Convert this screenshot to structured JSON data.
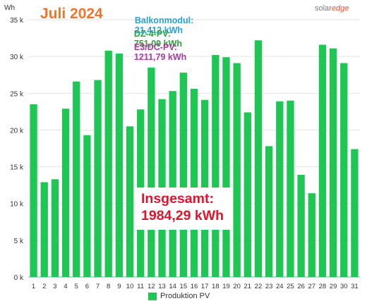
{
  "header": {
    "title": "Juli 2024",
    "unit": "Wh",
    "logo_a": "solar",
    "logo_b": "edge"
  },
  "info": [
    {
      "label": "Balkonmodul:",
      "value": "21,412 kWh",
      "color": "#2e9fd6"
    },
    {
      "label": "DZ-4-PV:",
      "value": "751,09 kWh",
      "color": "#2aa33a"
    },
    {
      "label": "E3/DC-PV:",
      "value": "1211,79 kWh",
      "color": "#a83ca6"
    }
  ],
  "callout": {
    "line1": "Insgesamt:",
    "line2": "1984,29 kWh"
  },
  "chart_data": {
    "type": "bar",
    "title": "Juli 2024",
    "ylabel": "Wh",
    "xlabel": "",
    "categories": [
      "1",
      "2",
      "3",
      "4",
      "5",
      "6",
      "7",
      "8",
      "9",
      "10",
      "11",
      "12",
      "13",
      "14",
      "15",
      "16",
      "17",
      "18",
      "19",
      "20",
      "21",
      "22",
      "23",
      "24",
      "25",
      "26",
      "27",
      "28",
      "29",
      "30",
      "31"
    ],
    "series": [
      {
        "name": "Produktion PV",
        "color": "#1ec653",
        "values": [
          23500,
          12900,
          13300,
          22900,
          26600,
          19300,
          26800,
          30800,
          30400,
          20500,
          22800,
          28500,
          24200,
          25300,
          27800,
          25600,
          24100,
          30200,
          29900,
          29100,
          22400,
          32200,
          17800,
          23900,
          24000,
          13900,
          11400,
          31600,
          31100,
          29100,
          17400
        ]
      }
    ],
    "ylim": [
      0,
      35000
    ],
    "yticks": [
      0,
      5000,
      10000,
      15000,
      20000,
      25000,
      30000,
      35000
    ],
    "ytick_labels": [
      "0 k",
      "5 k",
      "10 k",
      "15 k",
      "20 k",
      "25 k",
      "30 k",
      "35 k"
    ],
    "grid": true,
    "legend": "bottom"
  }
}
